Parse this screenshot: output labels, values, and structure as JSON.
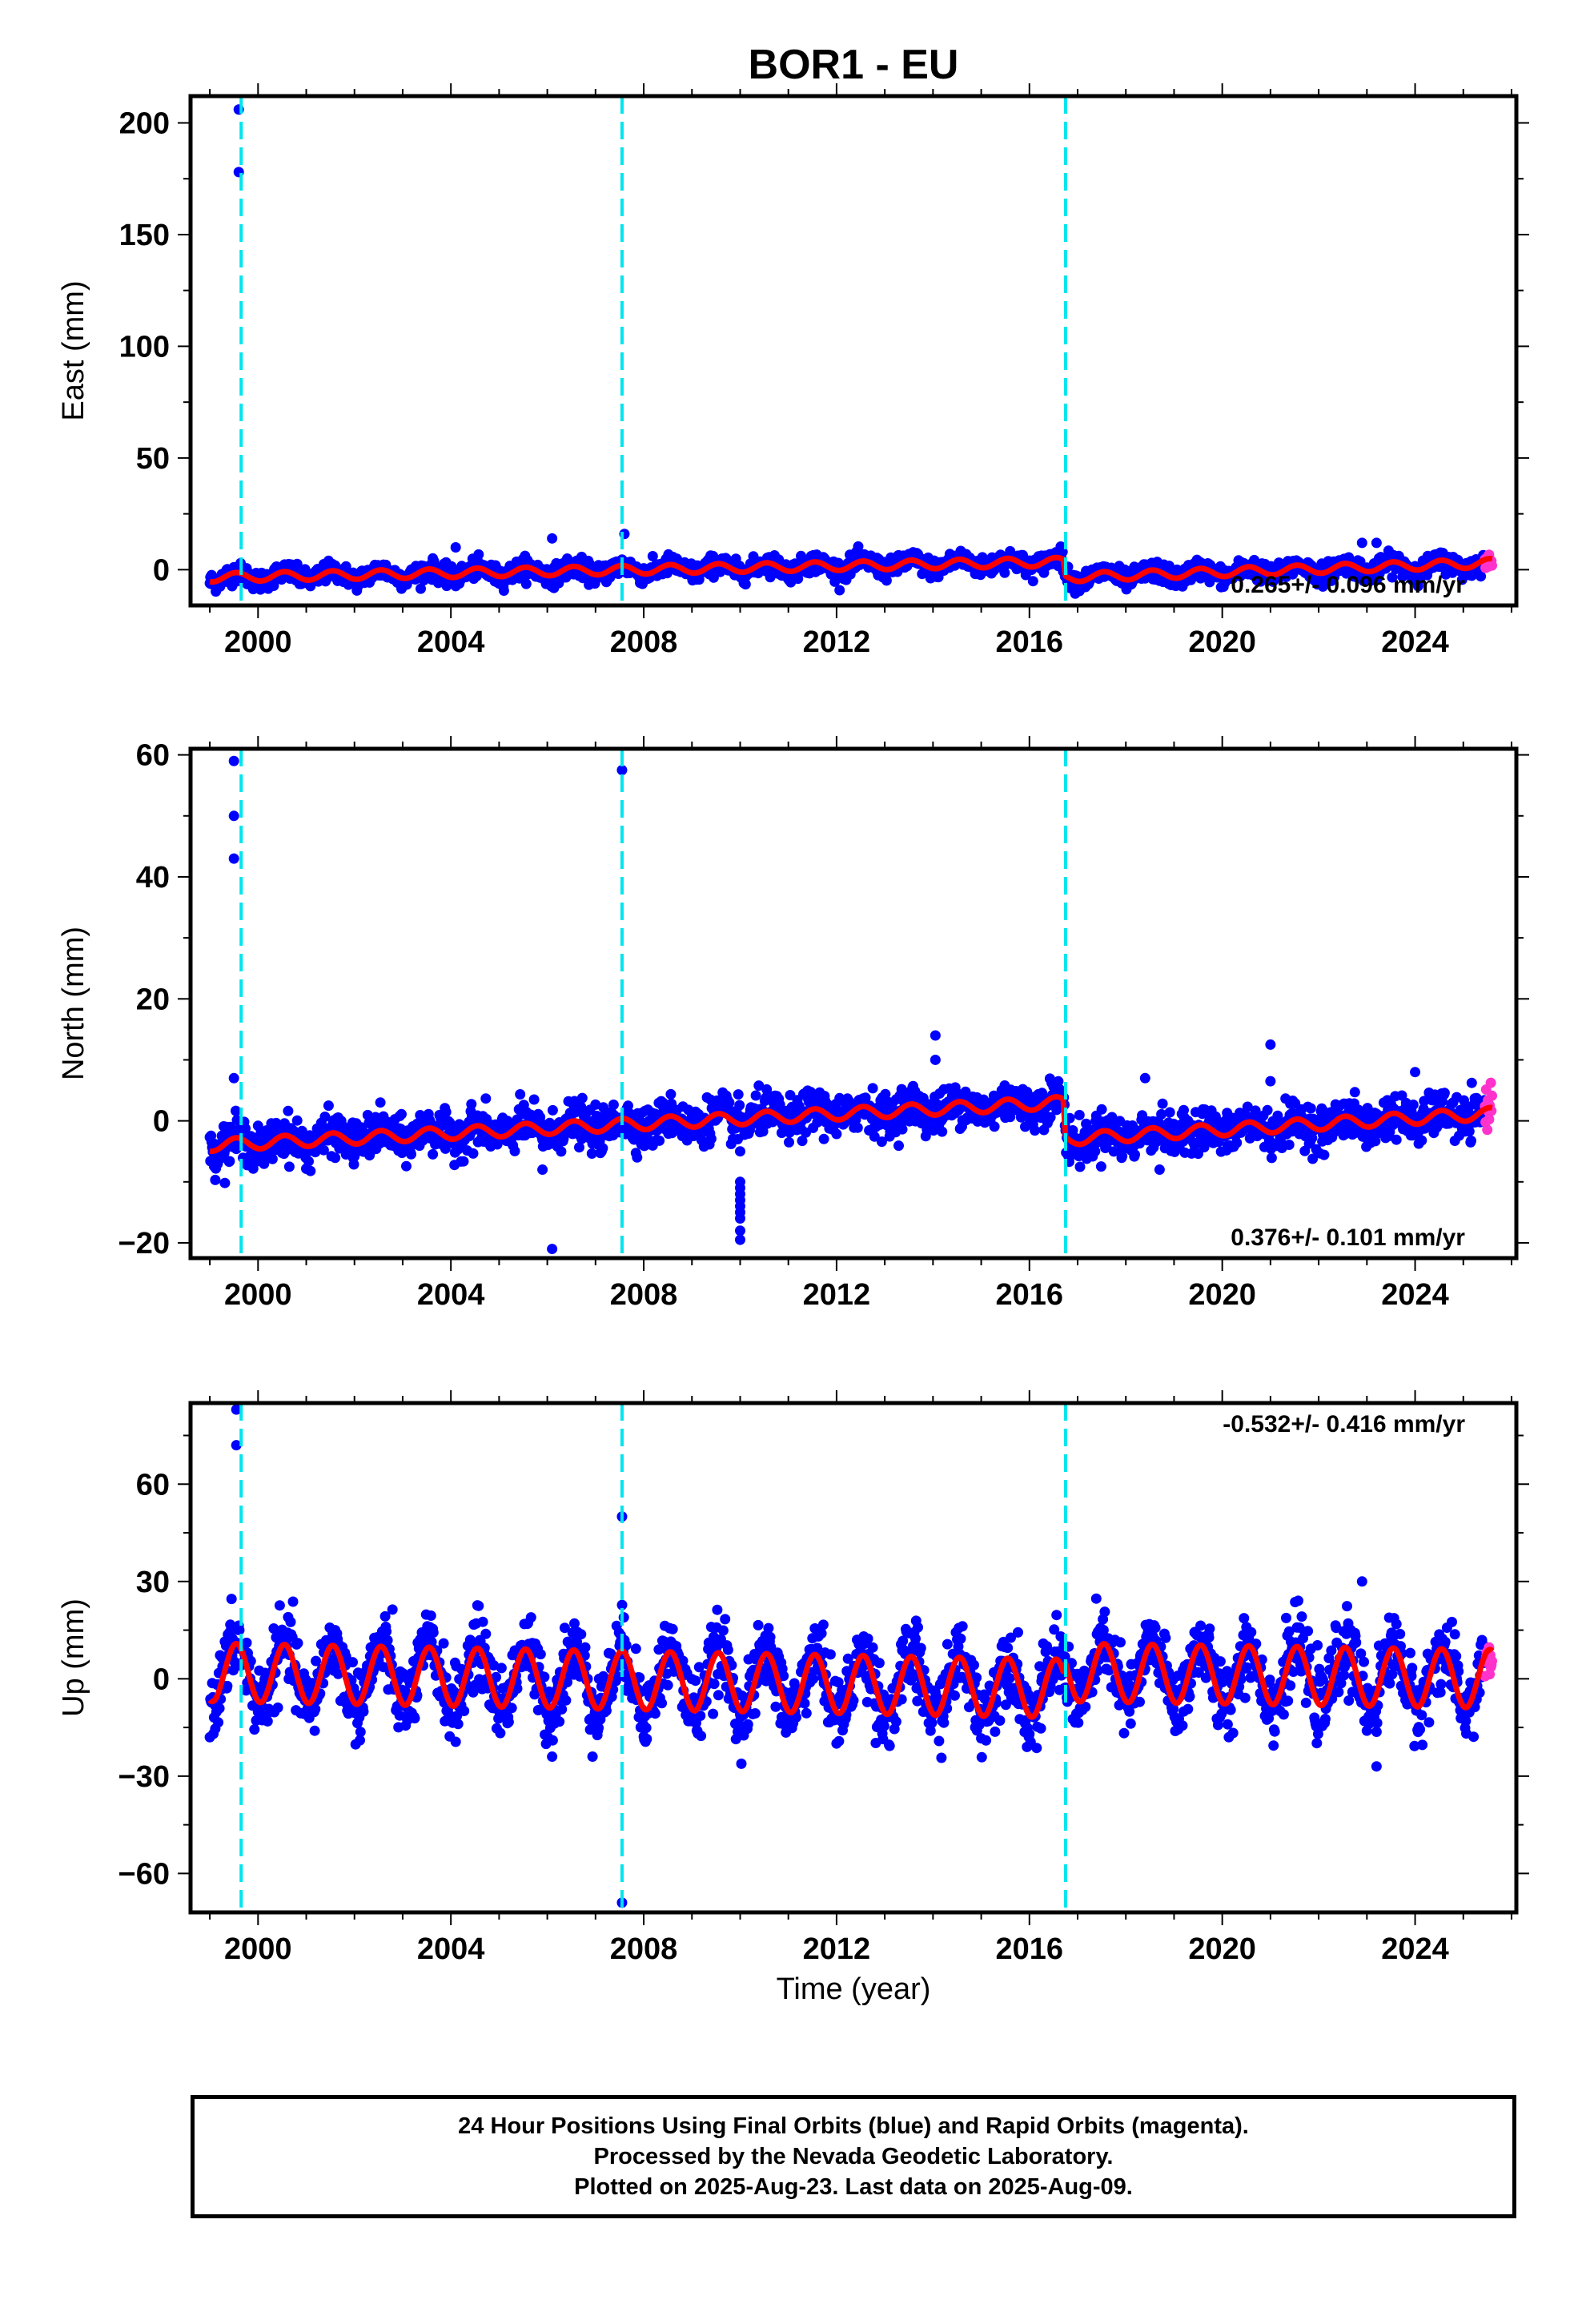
{
  "title": "BOR1 - EU",
  "xlabel": "Time (year)",
  "caption": [
    "24 Hour Positions Using Final Orbits (blue) and Rapid Orbits (magenta).",
    "Processed by the Nevada Geodetic Laboratory.",
    "Plotted on 2025-Aug-23. Last data on 2025-Aug-09."
  ],
  "colors": {
    "final_orbits": "#0000ff",
    "rapid_orbits": "#ff33cc",
    "model_fit": "#ff0000",
    "equipment_change": "#00e5ee"
  },
  "chart_data": [
    {
      "type": "scatter",
      "ylabel": "East (mm)",
      "xlim": [
        1998.6,
        2026.1
      ],
      "ylim": [
        -16,
        212
      ],
      "xticks": [
        2000,
        2004,
        2008,
        2012,
        2016,
        2020,
        2024
      ],
      "xtick_labels": [
        "2000",
        "2004",
        "2008",
        "2012",
        "2016",
        "2020",
        "2024"
      ],
      "yticks": [
        0,
        50,
        100,
        150,
        200
      ],
      "ytick_labels": [
        "0",
        "50",
        "100",
        "150",
        "200"
      ],
      "rate_text": "0.265+/- 0.096 mm/yr",
      "rate_position": "bottom-right",
      "grid": false,
      "steps": [
        1999.65,
        2007.55,
        2016.75
      ],
      "outliers": [
        [
          1999.6,
          206
        ],
        [
          1999.6,
          178
        ],
        [
          2004.1,
          10
        ],
        [
          2006.1,
          14
        ],
        [
          2007.6,
          16
        ],
        [
          2022.9,
          12
        ],
        [
          2023.2,
          12
        ]
      ],
      "series": [
        {
          "name": "Final Orbits",
          "color": "#0000ff",
          "role": "daily_positions",
          "x_range": [
            1999.0,
            2025.45
          ],
          "scatter_sd": 2.2,
          "trend": [
            [
              1999.0,
              -3.5
            ],
            [
              2016.7,
              3.5
            ],
            [
              2016.75,
              -3.5
            ],
            [
              2025.45,
              2.5
            ]
          ],
          "annual_amp": 2.0
        },
        {
          "name": "Rapid Orbits",
          "color": "#ff33cc",
          "role": "daily_positions",
          "x_range": [
            2025.45,
            2025.6
          ],
          "scatter_sd": 1.5,
          "trend": [
            [
              2025.45,
              3
            ],
            [
              2025.6,
              4
            ]
          ],
          "annual_amp": 0
        },
        {
          "name": "Model",
          "color": "#ff0000",
          "role": "fit",
          "x_range": [
            1999.0,
            2025.6
          ],
          "trend": [
            [
              1999.0,
              -3.5
            ],
            [
              2016.7,
              3.5
            ],
            [
              2016.75,
              -3.5
            ],
            [
              2025.6,
              3
            ]
          ],
          "annual_amp": 2.0
        }
      ]
    },
    {
      "type": "scatter",
      "ylabel": "North (mm)",
      "xlim": [
        1998.6,
        2026.1
      ],
      "ylim": [
        -22.5,
        61
      ],
      "xticks": [
        2000,
        2004,
        2008,
        2012,
        2016,
        2020,
        2024
      ],
      "xtick_labels": [
        "2000",
        "2004",
        "2008",
        "2012",
        "2016",
        "2020",
        "2024"
      ],
      "yticks": [
        -20,
        0,
        20,
        40,
        60
      ],
      "ytick_labels": [
        "−20",
        "0",
        "20",
        "40",
        "60"
      ],
      "rate_text": "0.376+/- 0.101 mm/yr",
      "rate_position": "bottom-right",
      "grid": false,
      "steps": [
        1999.65,
        2007.55,
        2016.75
      ],
      "outliers": [
        [
          1999.5,
          59
        ],
        [
          1999.5,
          50
        ],
        [
          1999.5,
          43
        ],
        [
          1999.5,
          7
        ],
        [
          2006.1,
          -21
        ],
        [
          2005.9,
          -8
        ],
        [
          2007.55,
          57.5
        ],
        [
          2010.0,
          -10
        ],
        [
          2010.0,
          -11
        ],
        [
          2010.0,
          -12
        ],
        [
          2010.0,
          -13
        ],
        [
          2010.0,
          -14
        ],
        [
          2010.0,
          -15
        ],
        [
          2010.0,
          -16
        ],
        [
          2010.0,
          -18
        ],
        [
          2010.0,
          -19.5
        ],
        [
          2010.0,
          -5
        ],
        [
          2014.05,
          14
        ],
        [
          2014.05,
          10
        ],
        [
          2018.4,
          7
        ],
        [
          2018.7,
          -8
        ],
        [
          2021.0,
          12.5
        ],
        [
          2021.0,
          6.5
        ],
        [
          2024.0,
          8
        ]
      ],
      "series": [
        {
          "name": "Final Orbits",
          "color": "#0000ff",
          "role": "daily_positions",
          "x_range": [
            1999.0,
            2025.45
          ],
          "scatter_sd": 1.7,
          "trend": [
            [
              1999.0,
              -4
            ],
            [
              2016.7,
              3
            ],
            [
              2016.75,
              -3
            ],
            [
              2025.45,
              1
            ]
          ],
          "annual_amp": 1.0
        },
        {
          "name": "Rapid Orbits",
          "color": "#ff33cc",
          "role": "daily_positions",
          "x_range": [
            2025.45,
            2025.6
          ],
          "scatter_sd": 1.5,
          "trend": [
            [
              2025.45,
              2
            ],
            [
              2025.6,
              3
            ]
          ],
          "annual_amp": 0
        },
        {
          "name": "Model",
          "color": "#ff0000",
          "role": "fit",
          "x_range": [
            1999.0,
            2025.6
          ],
          "trend": [
            [
              1999.0,
              -4
            ],
            [
              2016.7,
              3
            ],
            [
              2016.75,
              -3
            ],
            [
              2025.6,
              1.2
            ]
          ],
          "annual_amp": 1.0
        }
      ]
    },
    {
      "type": "scatter",
      "ylabel": "Up (mm)",
      "xlim": [
        1998.6,
        2026.1
      ],
      "ylim": [
        -72,
        85
      ],
      "xticks": [
        2000,
        2004,
        2008,
        2012,
        2016,
        2020,
        2024
      ],
      "xtick_labels": [
        "2000",
        "2004",
        "2008",
        "2012",
        "2016",
        "2020",
        "2024"
      ],
      "yticks": [
        -60,
        -30,
        0,
        30,
        60
      ],
      "ytick_labels": [
        "−60",
        "−30",
        "0",
        "30",
        "60"
      ],
      "rate_text": "-0.532+/- 0.416 mm/yr",
      "rate_position": "top-right",
      "grid": false,
      "steps": [
        1999.65,
        2007.55,
        2016.75
      ],
      "outliers": [
        [
          1999.55,
          83
        ],
        [
          1999.55,
          72
        ],
        [
          2007.55,
          50
        ],
        [
          2007.55,
          -69
        ],
        [
          2022.9,
          30
        ],
        [
          2023.2,
          -27
        ],
        [
          2006.1,
          -24
        ]
      ],
      "series": [
        {
          "name": "Final Orbits",
          "color": "#0000ff",
          "role": "daily_positions",
          "x_range": [
            1999.0,
            2025.45
          ],
          "scatter_sd": 5.5,
          "trend": [
            [
              1999.0,
              2
            ],
            [
              2016.7,
              -3
            ],
            [
              2016.75,
              2
            ],
            [
              2025.45,
              0
            ]
          ],
          "annual_amp": 9.0
        },
        {
          "name": "Rapid Orbits",
          "color": "#ff33cc",
          "role": "daily_positions",
          "x_range": [
            2025.45,
            2025.6
          ],
          "scatter_sd": 3,
          "trend": [
            [
              2025.45,
              4
            ],
            [
              2025.6,
              6
            ]
          ],
          "annual_amp": 0
        },
        {
          "name": "Model",
          "color": "#ff0000",
          "role": "fit",
          "x_range": [
            1999.0,
            2025.6
          ],
          "trend": [
            [
              1999.0,
              2
            ],
            [
              2016.7,
              -3
            ],
            [
              2016.75,
              2
            ],
            [
              2025.6,
              0
            ]
          ],
          "annual_amp": 9.0
        }
      ]
    }
  ]
}
